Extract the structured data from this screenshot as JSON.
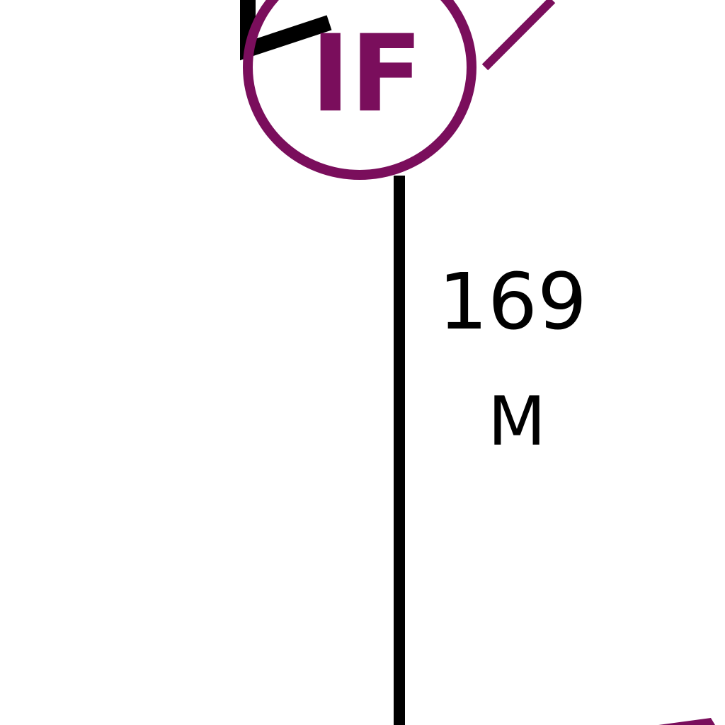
{
  "colors": {
    "fix_purple": "#7a0e5c",
    "line_black": "#000000",
    "background": "#ffffff"
  },
  "fix": {
    "label": "IF",
    "symbol": "fix-circle"
  },
  "leg": {
    "distance": "169",
    "unit": "M"
  }
}
